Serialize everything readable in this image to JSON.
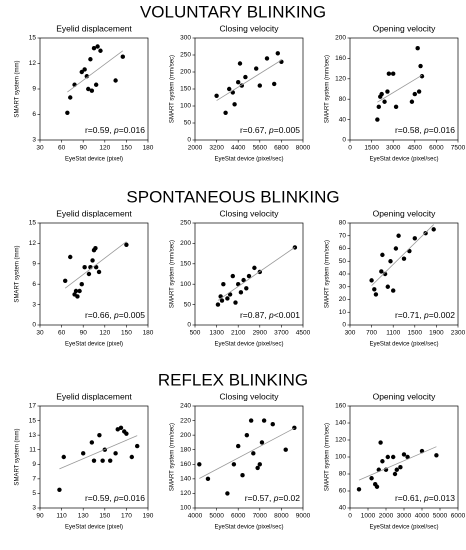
{
  "sections": [
    {
      "title": "VOLUNTARY BLINKING"
    },
    {
      "title": "SPONTANEOUS BLINKING"
    },
    {
      "title": "REFLEX BLINKING"
    }
  ],
  "chart_data": [
    {
      "type": "scatter",
      "title": "Eyelid displacement",
      "xlabel": "EyeStat device (pixel)",
      "ylabel": "SMART system (mm)",
      "x": [
        68,
        72,
        78,
        88,
        92,
        95,
        97,
        100,
        102,
        105,
        108,
        110,
        114,
        135,
        145
      ],
      "values": [
        6.2,
        8,
        9.5,
        11,
        11.3,
        10.5,
        9,
        12.5,
        8.8,
        13.8,
        9.5,
        14,
        13.5,
        10,
        12.8
      ],
      "xlim": [
        30,
        180
      ],
      "xticks": [
        30,
        60,
        90,
        120,
        150,
        180
      ],
      "ylim": [
        3,
        15
      ],
      "yticks": [
        3,
        6,
        9,
        12,
        15
      ],
      "annotation": [
        "r=0.59, ",
        "p",
        "=0.016"
      ]
    },
    {
      "type": "scatter",
      "title": "Closing velocity",
      "xlabel": "EyeStat device (pixel/sec)",
      "ylabel": "SMART system (mm/sec)",
      "x": [
        3200,
        3700,
        3900,
        4100,
        4200,
        4400,
        4500,
        4600,
        4800,
        5400,
        5600,
        6000,
        6400,
        6600,
        6800
      ],
      "values": [
        130,
        80,
        150,
        140,
        105,
        170,
        225,
        160,
        185,
        210,
        160,
        240,
        165,
        255,
        230
      ],
      "xlim": [
        2000,
        8000
      ],
      "xticks": [
        2000,
        3200,
        4400,
        5600,
        6800,
        8000
      ],
      "ylim": [
        0,
        300
      ],
      "yticks": [
        0,
        50,
        100,
        150,
        200,
        250,
        300
      ],
      "annotation": [
        "r=0.67, ",
        "p",
        "=0.005"
      ]
    },
    {
      "type": "scatter",
      "title": "Opening velocity",
      "xlabel": "EyeStat device (pixel/sec)",
      "ylabel": "SMART system (mm/sec)",
      "x": [
        1900,
        2000,
        2100,
        2200,
        2400,
        2600,
        2700,
        3000,
        3200,
        4300,
        4500,
        4700,
        4900,
        5000,
        4800
      ],
      "values": [
        40,
        65,
        85,
        90,
        75,
        95,
        130,
        130,
        65,
        75,
        90,
        180,
        145,
        125,
        95
      ],
      "xlim": [
        0,
        7500
      ],
      "xticks": [
        0,
        1500,
        3000,
        4500,
        6000,
        7500
      ],
      "ylim": [
        0,
        200
      ],
      "yticks": [
        0,
        40,
        80,
        120,
        160,
        200
      ],
      "annotation": [
        "r=0.58, ",
        "p",
        "=0.016"
      ]
    },
    {
      "type": "scatter",
      "title": "Eyelid displacement",
      "xlabel": "EyeStat device (pixel)",
      "ylabel": "SMART system (mm)",
      "x": [
        65,
        72,
        78,
        80,
        82,
        85,
        88,
        92,
        98,
        100,
        103,
        105,
        107,
        108,
        112,
        150
      ],
      "values": [
        6.5,
        10,
        4.5,
        5,
        4.2,
        5,
        6,
        8.5,
        7.5,
        8.5,
        9.5,
        11,
        11.3,
        8.5,
        7.8,
        11.8
      ],
      "xlim": [
        30,
        180
      ],
      "xticks": [
        30,
        60,
        90,
        120,
        150,
        180
      ],
      "ylim": [
        0,
        15
      ],
      "yticks": [
        0,
        3,
        6,
        9,
        12,
        15
      ],
      "annotation": [
        "r=0.66, ",
        "p",
        "=0.005"
      ]
    },
    {
      "type": "scatter",
      "title": "Closing velocity",
      "xlabel": "EyeStat device (pixel/sec)",
      "ylabel": "SMART system (mm/sec)",
      "x": [
        1350,
        1450,
        1500,
        1550,
        1700,
        1800,
        1900,
        2000,
        2100,
        2200,
        2300,
        2400,
        2500,
        2700,
        2900,
        4200
      ],
      "values": [
        50,
        70,
        60,
        100,
        65,
        75,
        120,
        55,
        100,
        80,
        110,
        90,
        120,
        140,
        130,
        190
      ],
      "xlim": [
        500,
        4500
      ],
      "xticks": [
        500,
        1300,
        2100,
        2900,
        3700,
        4500
      ],
      "ylim": [
        0,
        250
      ],
      "yticks": [
        0,
        50,
        100,
        150,
        200,
        250
      ],
      "annotation": [
        "r=0.87, ",
        "p",
        "<0.001"
      ]
    },
    {
      "type": "scatter",
      "title": "Opening velocity",
      "xlabel": "EyeStat device (pixel/sec)",
      "ylabel": "SMART system (mm/sec)",
      "x": [
        700,
        750,
        780,
        880,
        900,
        950,
        1000,
        1050,
        1100,
        1150,
        1200,
        1300,
        1400,
        1500,
        1700,
        1850
      ],
      "values": [
        35,
        28,
        24,
        42,
        55,
        40,
        30,
        50,
        27,
        60,
        70,
        52,
        58,
        68,
        72,
        75
      ],
      "xlim": [
        300,
        2300
      ],
      "xticks": [
        300,
        700,
        1100,
        1500,
        1900,
        2300
      ],
      "ylim": [
        0,
        80
      ],
      "yticks": [
        0,
        10,
        20,
        30,
        40,
        50,
        60,
        70,
        80
      ],
      "annotation": [
        "r=0.71, ",
        "p",
        "=0.002"
      ]
    },
    {
      "type": "scatter",
      "title": "Eyelid displacement",
      "xlabel": "EyeStat device (pixel)",
      "ylabel": "SMART system (mm)",
      "x": [
        108,
        112,
        130,
        138,
        140,
        145,
        148,
        150,
        155,
        160,
        162,
        165,
        168,
        170,
        175,
        180
      ],
      "values": [
        5.5,
        10,
        10.5,
        12,
        9.5,
        13,
        9.5,
        11,
        9.5,
        10.5,
        13.8,
        14,
        13.5,
        13.2,
        10,
        11.5
      ],
      "xlim": [
        90,
        190
      ],
      "xticks": [
        90,
        110,
        130,
        150,
        170,
        190
      ],
      "ylim": [
        3,
        17
      ],
      "yticks": [
        3,
        5,
        7,
        9,
        11,
        13,
        15,
        17
      ],
      "annotation": [
        "r=0.59, ",
        "p",
        "=0.016"
      ]
    },
    {
      "type": "scatter",
      "title": "Closing velocity",
      "xlabel": "EyeStat device (pixel/sec)",
      "ylabel": "SMART system (mm/sec)",
      "x": [
        4200,
        4600,
        5500,
        5800,
        6000,
        6200,
        6400,
        6600,
        6700,
        6900,
        7000,
        7100,
        7200,
        7600,
        8200,
        8600
      ],
      "values": [
        160,
        140,
        120,
        160,
        185,
        145,
        200,
        220,
        175,
        155,
        160,
        190,
        220,
        215,
        180,
        210
      ],
      "xlim": [
        4000,
        9000
      ],
      "xticks": [
        4000,
        5000,
        6000,
        7000,
        8000,
        9000
      ],
      "ylim": [
        100,
        240
      ],
      "yticks": [
        100,
        120,
        140,
        160,
        180,
        200,
        220,
        240
      ],
      "annotation": [
        "r=0.57, ",
        "p",
        "=0.02"
      ]
    },
    {
      "type": "scatter",
      "title": "Opening velocity",
      "xlabel": "EyeStat device (pixel/sec)",
      "ylabel": "SMART system (mm/sec)",
      "x": [
        500,
        1200,
        1400,
        1500,
        1600,
        1700,
        1800,
        2000,
        2100,
        2400,
        2500,
        2600,
        2800,
        3000,
        3200,
        4000,
        4800
      ],
      "values": [
        62,
        75,
        68,
        65,
        85,
        117,
        95,
        85,
        100,
        100,
        80,
        85,
        88,
        103,
        100,
        107,
        102
      ],
      "xlim": [
        0,
        6000
      ],
      "xticks": [
        0,
        1000,
        2000,
        3000,
        4000,
        5000,
        6000
      ],
      "ylim": [
        40,
        160
      ],
      "yticks": [
        40,
        60,
        80,
        100,
        120,
        140,
        160
      ],
      "annotation": [
        "r=0.61, ",
        "p",
        "=0.013"
      ]
    }
  ]
}
